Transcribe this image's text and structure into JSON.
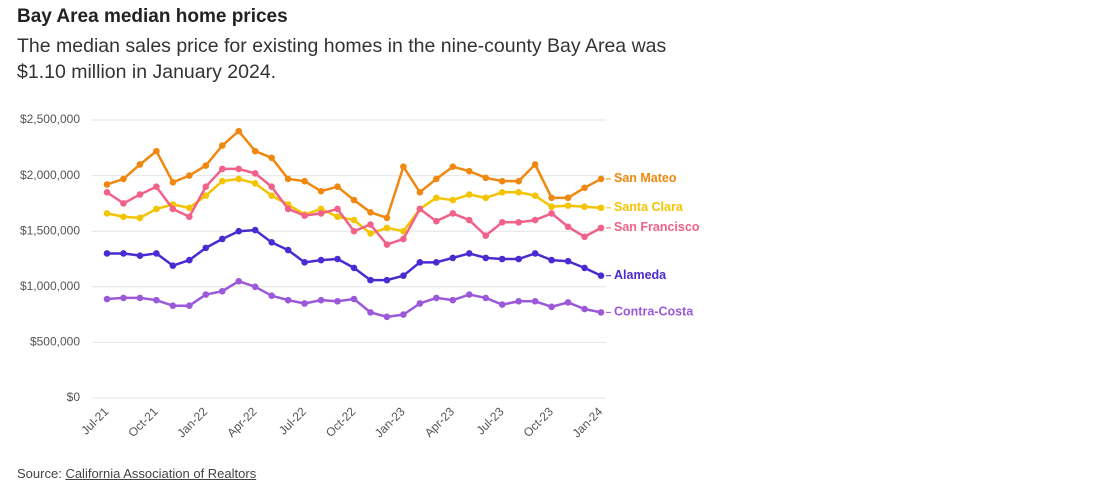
{
  "chart_data": {
    "type": "line",
    "title": "Bay Area median home prices",
    "subtitle": "The median sales price for existing homes in the nine-county Bay Area was $1.10 million in January 2024.",
    "source_prefix": "Source:",
    "source_link": "California Association of Realtors",
    "categories": [
      "Jul-21",
      null,
      null,
      "Oct-21",
      null,
      null,
      "Jan-22",
      null,
      null,
      "Apr-22",
      null,
      null,
      "Jul-22",
      null,
      null,
      "Oct-22",
      null,
      null,
      "Jan-23",
      null,
      null,
      "Apr-23",
      null,
      null,
      "Jul-23",
      null,
      null,
      "Oct-23",
      null,
      null,
      "Jan-24"
    ],
    "ylim": [
      0,
      2500000
    ],
    "yticks": [
      {
        "value": 0,
        "label": "$0"
      },
      {
        "value": 500000,
        "label": "$500,000"
      },
      {
        "value": 1000000,
        "label": "$1,000,000"
      },
      {
        "value": 1500000,
        "label": "$1,500,000"
      },
      {
        "value": 2000000,
        "label": "$2,000,000"
      },
      {
        "value": 2500000,
        "label": "$2,500,000"
      }
    ],
    "grid": true,
    "series": [
      {
        "name": "San Mateo",
        "color": "#f0880f",
        "values": [
          1920000,
          1970000,
          2100000,
          2220000,
          1940000,
          2000000,
          2090000,
          2270000,
          2400000,
          2220000,
          2160000,
          1970000,
          1950000,
          1860000,
          1900000,
          1780000,
          1670000,
          1620000,
          2080000,
          1850000,
          1970000,
          2080000,
          2040000,
          1980000,
          1950000,
          1950000,
          2100000,
          1800000,
          1800000,
          1890000,
          1970000
        ]
      },
      {
        "name": "Santa Clara",
        "color": "#f5c400",
        "values": [
          1660000,
          1630000,
          1620000,
          1700000,
          1740000,
          1710000,
          1820000,
          1950000,
          1970000,
          1930000,
          1820000,
          1740000,
          1650000,
          1700000,
          1630000,
          1600000,
          1480000,
          1530000,
          1500000,
          1700000,
          1800000,
          1780000,
          1830000,
          1800000,
          1850000,
          1850000,
          1820000,
          1720000,
          1730000,
          1720000,
          1710000
        ]
      },
      {
        "name": "San Francisco",
        "color": "#f0628a",
        "values": [
          1850000,
          1750000,
          1830000,
          1900000,
          1700000,
          1630000,
          1900000,
          2060000,
          2060000,
          2020000,
          1900000,
          1700000,
          1640000,
          1660000,
          1700000,
          1500000,
          1560000,
          1380000,
          1430000,
          1700000,
          1590000,
          1660000,
          1600000,
          1460000,
          1580000,
          1580000,
          1600000,
          1660000,
          1540000,
          1450000,
          1530000
        ]
      },
      {
        "name": "Alameda",
        "color": "#4a2bd1",
        "values": [
          1300000,
          1300000,
          1280000,
          1300000,
          1190000,
          1240000,
          1350000,
          1430000,
          1500000,
          1510000,
          1400000,
          1330000,
          1220000,
          1240000,
          1250000,
          1170000,
          1060000,
          1060000,
          1100000,
          1220000,
          1220000,
          1260000,
          1300000,
          1260000,
          1250000,
          1250000,
          1300000,
          1240000,
          1230000,
          1170000,
          1100000
        ]
      },
      {
        "name": "Contra-Costa",
        "color": "#9b59d9",
        "values": [
          890000,
          900000,
          900000,
          880000,
          830000,
          830000,
          930000,
          960000,
          1050000,
          1000000,
          920000,
          880000,
          850000,
          880000,
          870000,
          890000,
          770000,
          730000,
          750000,
          850000,
          900000,
          880000,
          930000,
          900000,
          840000,
          870000,
          870000,
          820000,
          860000,
          800000,
          770000
        ]
      }
    ]
  }
}
